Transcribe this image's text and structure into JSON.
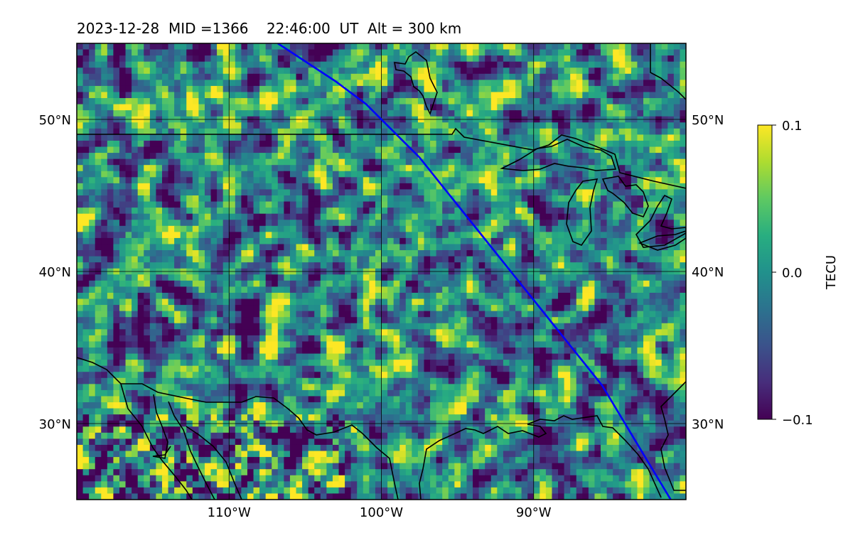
{
  "figure": {
    "title": "2023-12-28  MID =1366    22:46:00  UT  Alt = 300 km"
  },
  "map": {
    "projection": "plate carree",
    "lon_range": [
      -120,
      -80
    ],
    "lat_range": [
      25,
      55
    ],
    "gridlines": true,
    "lat_ticks": [
      {
        "value": 50,
        "label": "50°N"
      },
      {
        "value": 40,
        "label": "40°N"
      },
      {
        "value": 30,
        "label": "30°N"
      }
    ],
    "lon_ticks": [
      {
        "value": -110,
        "label": "110°W"
      },
      {
        "value": -100,
        "label": "100°W"
      },
      {
        "value": -90,
        "label": "90°W"
      }
    ],
    "field": {
      "quantity": "TEC perturbation",
      "units": "TECU",
      "colormap": "viridis",
      "vmin": -0.1,
      "vmax": 0.1
    },
    "track": {
      "color": "#0000ff",
      "points": [
        [
          -106.8,
          55
        ],
        [
          -103,
          52.5
        ],
        [
          -101,
          51
        ],
        [
          -99.5,
          49.5
        ],
        [
          -97.5,
          47.5
        ],
        [
          -95.5,
          45
        ],
        [
          -93.5,
          42.5
        ],
        [
          -91.5,
          40
        ],
        [
          -89.5,
          37.5
        ],
        [
          -87.5,
          35
        ],
        [
          -85.5,
          32.5
        ],
        [
          -84,
          30
        ],
        [
          -82.5,
          27.5
        ],
        [
          -81,
          25
        ]
      ]
    },
    "coastline_color": "#000000"
  },
  "colorbar": {
    "label": "TECU",
    "ticks": [
      {
        "value": 0.1,
        "label": "0.1"
      },
      {
        "value": 0.0,
        "label": "0.0"
      },
      {
        "value": -0.1,
        "label": "−0.1"
      }
    ],
    "colormap": "viridis"
  }
}
